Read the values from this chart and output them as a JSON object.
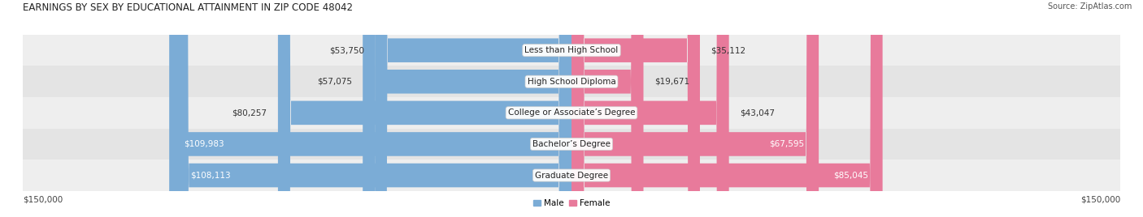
{
  "title": "EARNINGS BY SEX BY EDUCATIONAL ATTAINMENT IN ZIP CODE 48042",
  "source": "Source: ZipAtlas.com",
  "categories": [
    "Less than High School",
    "High School Diploma",
    "College or Associate’s Degree",
    "Bachelor’s Degree",
    "Graduate Degree"
  ],
  "male_values": [
    53750,
    57075,
    80257,
    109983,
    108113
  ],
  "female_values": [
    35112,
    19671,
    43047,
    67595,
    85045
  ],
  "male_labels": [
    "$53,750",
    "$57,075",
    "$80,257",
    "$109,983",
    "$108,113"
  ],
  "female_labels": [
    "$35,112",
    "$19,671",
    "$43,047",
    "$67,595",
    "$85,045"
  ],
  "male_color": "#7bacd6",
  "female_color": "#e87a9b",
  "row_bg_colors": [
    "#eeeeee",
    "#e4e4e4",
    "#eeeeee",
    "#e4e4e4",
    "#eeeeee"
  ],
  "max_value": 150000,
  "axis_label_left": "$150,000",
  "axis_label_right": "$150,000",
  "title_fontsize": 8.5,
  "source_fontsize": 7.0,
  "label_fontsize": 7.5,
  "category_fontsize": 7.5,
  "legend_fontsize": 7.5,
  "background_color": "#ffffff",
  "male_inside_threshold": 85000,
  "female_inside_threshold": 50000
}
